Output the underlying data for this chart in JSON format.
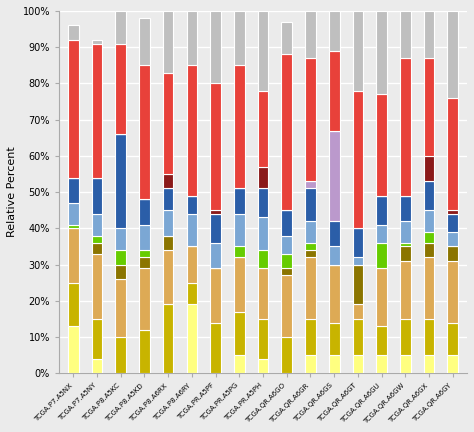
{
  "categories": [
    "TCGA.P7.A5NX",
    "TCGA.P7.A5NY",
    "TCGA.P8.A5KC",
    "TCGA.P8.A5KD",
    "TCGA.P8.A6RX",
    "TCGA.P8.A6RY",
    "TCGA.PR.A5PF",
    "TCGA.PR.A5PG",
    "TCGA.PR.A5PH",
    "TCGA.QR.A6GO",
    "TCGA.QR.A6GR",
    "TCGA.QR.A6GS",
    "TCGA.QR.A6GT",
    "TCGA.QR.A6GU",
    "TCGA.QR.A6GW",
    "TCGA.QR.A6GX",
    "TCGA.QR.A6GY"
  ],
  "layers": [
    {
      "name": "yellow",
      "color": "#FFFF80",
      "values": [
        0.13,
        0.04,
        0.0,
        0.0,
        0.0,
        0.19,
        0.0,
        0.05,
        0.04,
        0.0,
        0.05,
        0.05,
        0.05,
        0.05,
        0.05,
        0.05,
        0.05
      ]
    },
    {
      "name": "olive_yellow",
      "color": "#C8B400",
      "values": [
        0.12,
        0.11,
        0.1,
        0.12,
        0.19,
        0.06,
        0.14,
        0.12,
        0.11,
        0.1,
        0.1,
        0.09,
        0.1,
        0.08,
        0.1,
        0.1,
        0.09
      ]
    },
    {
      "name": "orange_light",
      "color": "#DDAA55",
      "values": [
        0.15,
        0.18,
        0.16,
        0.17,
        0.15,
        0.1,
        0.15,
        0.15,
        0.14,
        0.17,
        0.17,
        0.16,
        0.04,
        0.16,
        0.16,
        0.17,
        0.17
      ]
    },
    {
      "name": "dark_olive",
      "color": "#8B7500",
      "values": [
        0.0,
        0.03,
        0.04,
        0.03,
        0.04,
        0.0,
        0.0,
        0.0,
        0.0,
        0.02,
        0.02,
        0.0,
        0.11,
        0.0,
        0.04,
        0.04,
        0.04
      ]
    },
    {
      "name": "green_bright",
      "color": "#66CC00",
      "values": [
        0.01,
        0.02,
        0.04,
        0.02,
        0.0,
        0.0,
        0.0,
        0.03,
        0.05,
        0.04,
        0.02,
        0.0,
        0.0,
        0.07,
        0.01,
        0.03,
        0.0
      ]
    },
    {
      "name": "steel_blue",
      "color": "#7BA7D4",
      "values": [
        0.06,
        0.06,
        0.06,
        0.07,
        0.07,
        0.09,
        0.07,
        0.09,
        0.09,
        0.05,
        0.06,
        0.05,
        0.02,
        0.05,
        0.06,
        0.06,
        0.04
      ]
    },
    {
      "name": "dark_blue",
      "color": "#2B5EA8",
      "values": [
        0.07,
        0.1,
        0.26,
        0.07,
        0.06,
        0.05,
        0.08,
        0.07,
        0.08,
        0.07,
        0.09,
        0.07,
        0.08,
        0.08,
        0.07,
        0.08,
        0.05
      ]
    },
    {
      "name": "purple",
      "color": "#BB99CC",
      "values": [
        0.0,
        0.0,
        0.0,
        0.0,
        0.0,
        0.0,
        0.0,
        0.0,
        0.0,
        0.0,
        0.02,
        0.25,
        0.0,
        0.0,
        0.0,
        0.0,
        0.0
      ]
    },
    {
      "name": "dark_red",
      "color": "#8B1A1A",
      "values": [
        0.0,
        0.0,
        0.0,
        0.0,
        0.04,
        0.0,
        0.01,
        0.0,
        0.06,
        0.0,
        0.0,
        0.0,
        0.0,
        0.0,
        0.0,
        0.07,
        0.01
      ]
    },
    {
      "name": "red",
      "color": "#E8413A",
      "values": [
        0.38,
        0.37,
        0.25,
        0.37,
        0.28,
        0.36,
        0.35,
        0.34,
        0.21,
        0.43,
        0.34,
        0.22,
        0.38,
        0.28,
        0.38,
        0.27,
        0.31
      ]
    },
    {
      "name": "light_gray",
      "color": "#BFBFBF",
      "values": [
        0.04,
        0.01,
        0.09,
        0.13,
        0.17,
        0.15,
        0.2,
        0.15,
        0.22,
        0.09,
        0.13,
        0.11,
        0.22,
        0.23,
        0.13,
        0.13,
        0.24
      ]
    }
  ],
  "ylabel": "Relative Percent",
  "ylim": [
    0,
    1.0
  ],
  "yticks": [
    0.0,
    0.1,
    0.2,
    0.3,
    0.4,
    0.5,
    0.6,
    0.7,
    0.8,
    0.9,
    1.0
  ],
  "yticklabels": [
    "0%",
    "10%",
    "20%",
    "30%",
    "40%",
    "50%",
    "60%",
    "70%",
    "80%",
    "90%",
    "100%"
  ],
  "bg_color": "#EBEBEB",
  "bar_width": 0.45,
  "bar_sep_color": "#FFFFFF",
  "grid_color": "#FFFFFF"
}
